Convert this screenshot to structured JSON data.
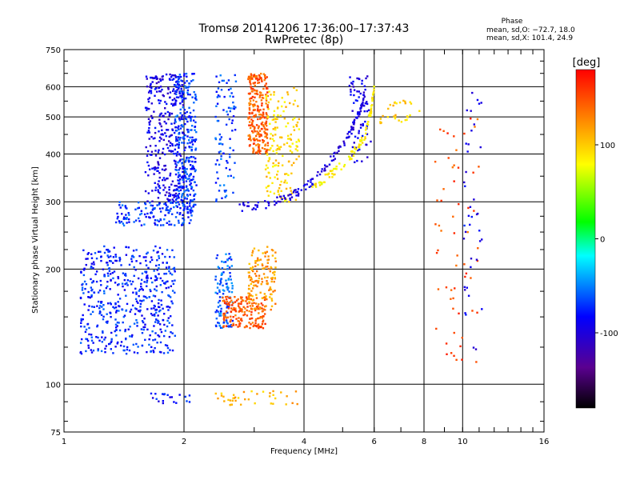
{
  "header": {
    "title_line1": "Tromsø 20141206 17:36:00–17:37:43",
    "title_line2": "RwPretec (8p)",
    "phase_title": "Phase",
    "phase_o": "mean, sd,O: −72.7, 18.0",
    "phase_x": "mean, sd,X: 101.4, 24.9"
  },
  "chart_data": {
    "type": "scatter",
    "title": "Tromsø 20141206 17:36:00–17:37:43",
    "subtitle": "RwPretec (8p)",
    "xlabel": "Frequency [MHz]",
    "ylabel": "Stationary phase Virtual Height [km]",
    "xscale": "log",
    "yscale": "log",
    "xlim": [
      1,
      16
    ],
    "ylim": [
      75,
      750
    ],
    "xticks": [
      1,
      2,
      4,
      6,
      8,
      10,
      16
    ],
    "xtick_labels": [
      "1",
      "2",
      "4",
      "6",
      "8",
      "10",
      "16"
    ],
    "yticks": [
      75,
      100,
      200,
      300,
      400,
      500,
      600,
      750
    ],
    "ytick_labels": [
      "75",
      "100",
      "200",
      "300",
      "400",
      "500",
      "600",
      "750"
    ],
    "grid": true,
    "colorbar": {
      "label": "[deg]",
      "range": [
        -180,
        180
      ],
      "ticks": [
        100,
        0,
        -100
      ],
      "tick_labels": [
        "100",
        "0",
        "-100"
      ]
    },
    "clusters": [
      {
        "f": [
          1.1,
          1.9
        ],
        "h": [
          120,
          230
        ],
        "phase": -75,
        "n": 520
      },
      {
        "f": [
          1.35,
          2.1
        ],
        "h": [
          260,
          300
        ],
        "phase": -70,
        "n": 140
      },
      {
        "f": [
          1.6,
          2.0
        ],
        "h": [
          300,
          650
        ],
        "phase": -95,
        "n": 320
      },
      {
        "f": [
          1.9,
          2.15
        ],
        "h": [
          280,
          650
        ],
        "phase": -70,
        "n": 300
      },
      {
        "f": [
          2.4,
          2.65
        ],
        "h": [
          140,
          220
        ],
        "phase": -60,
        "n": 110
      },
      {
        "f": [
          2.4,
          2.7
        ],
        "h": [
          300,
          650
        ],
        "phase": -65,
        "n": 90
      },
      {
        "f": [
          2.5,
          3.2
        ],
        "h": [
          140,
          170
        ],
        "phase": 145,
        "n": 170
      },
      {
        "f": [
          2.9,
          3.4
        ],
        "h": [
          155,
          230
        ],
        "phase": 120,
        "n": 140
      },
      {
        "f": [
          2.9,
          3.25
        ],
        "h": [
          400,
          650
        ],
        "phase": 145,
        "n": 260
      },
      {
        "f": [
          3.2,
          3.9
        ],
        "h": [
          300,
          600
        ],
        "phase": 95,
        "n": 160
      },
      {
        "f": [
          1.6,
          2.1
        ],
        "h": [
          89,
          95
        ],
        "phase": -80,
        "n": 20
      },
      {
        "f": [
          2.4,
          3.9
        ],
        "h": [
          88,
          96
        ],
        "phase": 110,
        "n": 40
      },
      {
        "f": [
          6.2,
          7.8
        ],
        "h": [
          480,
          560
        ],
        "phase": 100,
        "n": 30
      },
      {
        "f": [
          8.5,
          11.0
        ],
        "h": [
          110,
          520
        ],
        "phase": 150,
        "n": 60
      },
      {
        "f": [
          10.0,
          11.2
        ],
        "h": [
          120,
          600
        ],
        "phase": -90,
        "n": 40
      },
      {
        "f": [
          5.2,
          5.9
        ],
        "h": [
          380,
          650
        ],
        "phase": -95,
        "n": 70
      }
    ],
    "trace_o": {
      "points": [
        [
          2.7,
          290
        ],
        [
          3.2,
          295
        ],
        [
          3.6,
          305
        ],
        [
          4.0,
          325
        ],
        [
          4.4,
          355
        ],
        [
          4.8,
          400
        ],
        [
          5.2,
          450
        ],
        [
          5.5,
          510
        ],
        [
          5.7,
          580
        ]
      ],
      "phase": -100
    },
    "trace_x": {
      "points": [
        [
          4.2,
          330
        ],
        [
          4.6,
          350
        ],
        [
          5.0,
          375
        ],
        [
          5.4,
          410
        ],
        [
          5.7,
          450
        ],
        [
          5.9,
          520
        ],
        [
          6.0,
          600
        ]
      ],
      "phase": 85
    }
  }
}
